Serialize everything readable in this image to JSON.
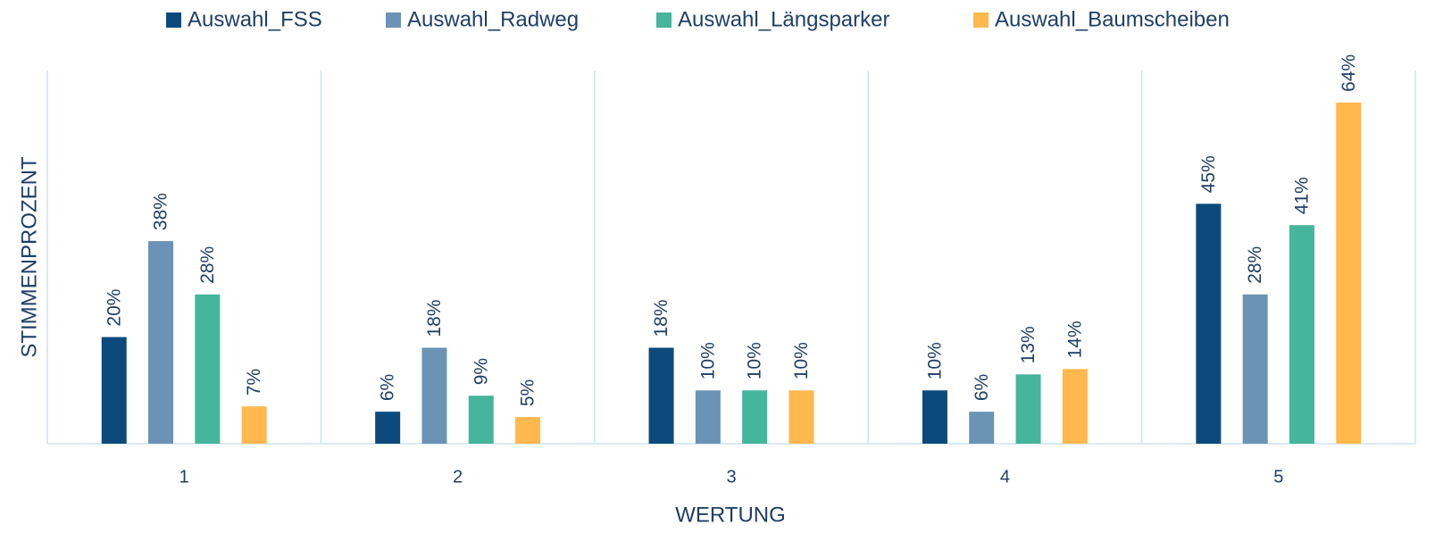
{
  "chart_data": {
    "type": "bar",
    "x_label": "WERTUNG",
    "y_label": "STIMMENPROZENT",
    "categories": [
      "1",
      "2",
      "3",
      "4",
      "5"
    ],
    "series": [
      {
        "name": "Auswahl_FSS",
        "color": "#0d4a7c",
        "values": [
          20,
          6,
          18,
          10,
          45
        ],
        "value_labels": [
          "20%",
          "6%",
          "18%",
          "10%",
          "45%"
        ]
      },
      {
        "name": "Auswahl_Radweg",
        "color": "#6a93b5",
        "values": [
          38,
          18,
          10,
          6,
          28
        ],
        "value_labels": [
          "38%",
          "18%",
          "10%",
          "6%",
          "28%"
        ]
      },
      {
        "name": "Auswahl_Längsparker",
        "color": "#45b59b",
        "values": [
          28,
          9,
          10,
          13,
          41
        ],
        "value_labels": [
          "28%",
          "9%",
          "10%",
          "13%",
          "41%"
        ]
      },
      {
        "name": "Auswahl_Baumscheiben",
        "color": "#ffb84d",
        "values": [
          7,
          5,
          10,
          14,
          64
        ],
        "value_labels": [
          "7%",
          "5%",
          "10%",
          "14%",
          "64%"
        ]
      }
    ],
    "ylim": [
      0,
      70
    ],
    "legend": "top"
  }
}
